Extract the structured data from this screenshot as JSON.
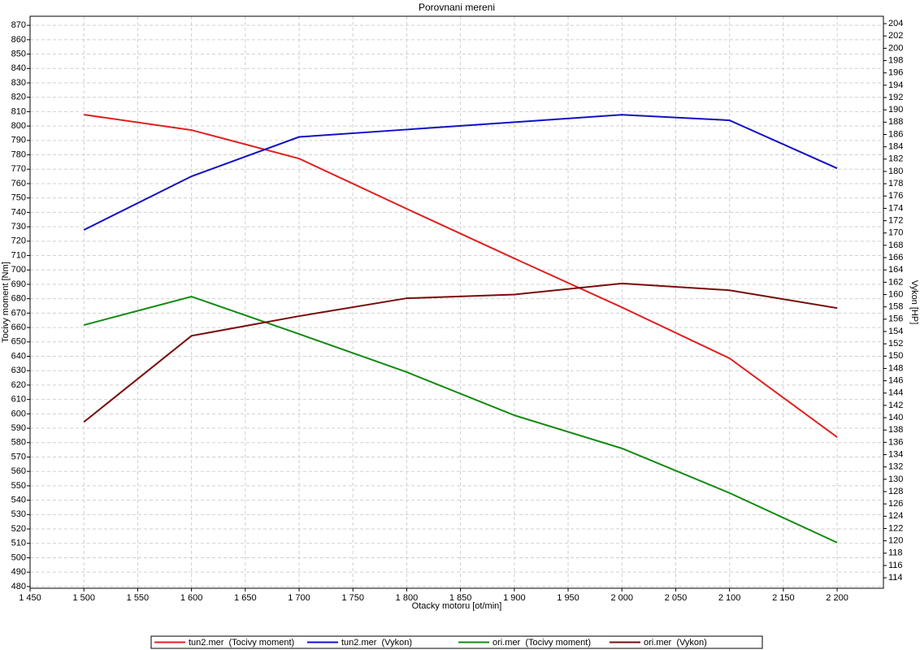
{
  "chart_data": {
    "type": "line",
    "title": "Porovnani mereni",
    "x_label": "Otacky motoru [ot/min]",
    "y_label": "Tocivy moment [Nm]",
    "y2_label": "Vykon [HP]",
    "x": [
      1500,
      1600,
      1700,
      1800,
      1900,
      2000,
      2100,
      2200
    ],
    "xlim": [
      1450,
      2243
    ],
    "xticks": [
      {
        "value": 1450,
        "label": "1 450"
      },
      {
        "value": 1500,
        "label": "1 500"
      },
      {
        "value": 1550,
        "label": "1 550"
      },
      {
        "value": 1600,
        "label": "1 600"
      },
      {
        "value": 1650,
        "label": "1 650"
      },
      {
        "value": 1700,
        "label": "1 700"
      },
      {
        "value": 1750,
        "label": "1 750"
      },
      {
        "value": 1800,
        "label": "1 800"
      },
      {
        "value": 1850,
        "label": "1 850"
      },
      {
        "value": 1900,
        "label": "1 900"
      },
      {
        "value": 1950,
        "label": "1 950"
      },
      {
        "value": 2000,
        "label": "2 000"
      },
      {
        "value": 2050,
        "label": "2 050"
      },
      {
        "value": 2100,
        "label": "2 100"
      },
      {
        "value": 2150,
        "label": "2 150"
      },
      {
        "value": 2200,
        "label": "2 200"
      }
    ],
    "ylim": [
      478.8,
      876.3
    ],
    "yticks": [
      480,
      490,
      500,
      510,
      520,
      530,
      540,
      550,
      560,
      570,
      580,
      590,
      600,
      610,
      620,
      630,
      640,
      650,
      660,
      670,
      680,
      690,
      700,
      710,
      720,
      730,
      740,
      750,
      760,
      770,
      780,
      790,
      800,
      810,
      820,
      830,
      840,
      850,
      860,
      870
    ],
    "y2lim": [
      112.3,
      205.2
    ],
    "y2ticks": [
      114,
      116,
      118,
      120,
      122,
      124,
      126,
      128,
      130,
      132,
      134,
      136,
      138,
      140,
      142,
      144,
      146,
      148,
      150,
      152,
      154,
      156,
      158,
      160,
      162,
      164,
      166,
      168,
      170,
      172,
      174,
      176,
      178,
      180,
      182,
      184,
      186,
      188,
      190,
      192,
      194,
      196,
      198,
      200,
      202,
      204
    ],
    "grid": true,
    "legend": "bottom",
    "series": [
      {
        "name": "tun2.mer  (Tocivy moment)",
        "color": "#e02020",
        "axis": "y",
        "values": [
          807.9,
          797.2,
          777.4,
          742.5,
          708,
          674,
          638.6,
          583.8
        ]
      },
      {
        "name": "tun2.mer  (Vykon)",
        "color": "#1010c8",
        "axis": "y2",
        "values": [
          170.5,
          179.2,
          185.6,
          186.8,
          188,
          189.2,
          188.3,
          180.5
        ]
      },
      {
        "name": "ori.mer  (Tocivy moment)",
        "color": "#108a10",
        "axis": "y",
        "values": [
          661.7,
          681.5,
          655.5,
          629,
          599,
          576,
          545,
          510.5
        ]
      },
      {
        "name": "ori.mer  (Vykon)",
        "color": "#7a0a0a",
        "axis": "y2",
        "values": [
          139.3,
          153.3,
          156.5,
          159.4,
          160,
          161.8,
          160.7,
          157.8
        ]
      }
    ]
  }
}
